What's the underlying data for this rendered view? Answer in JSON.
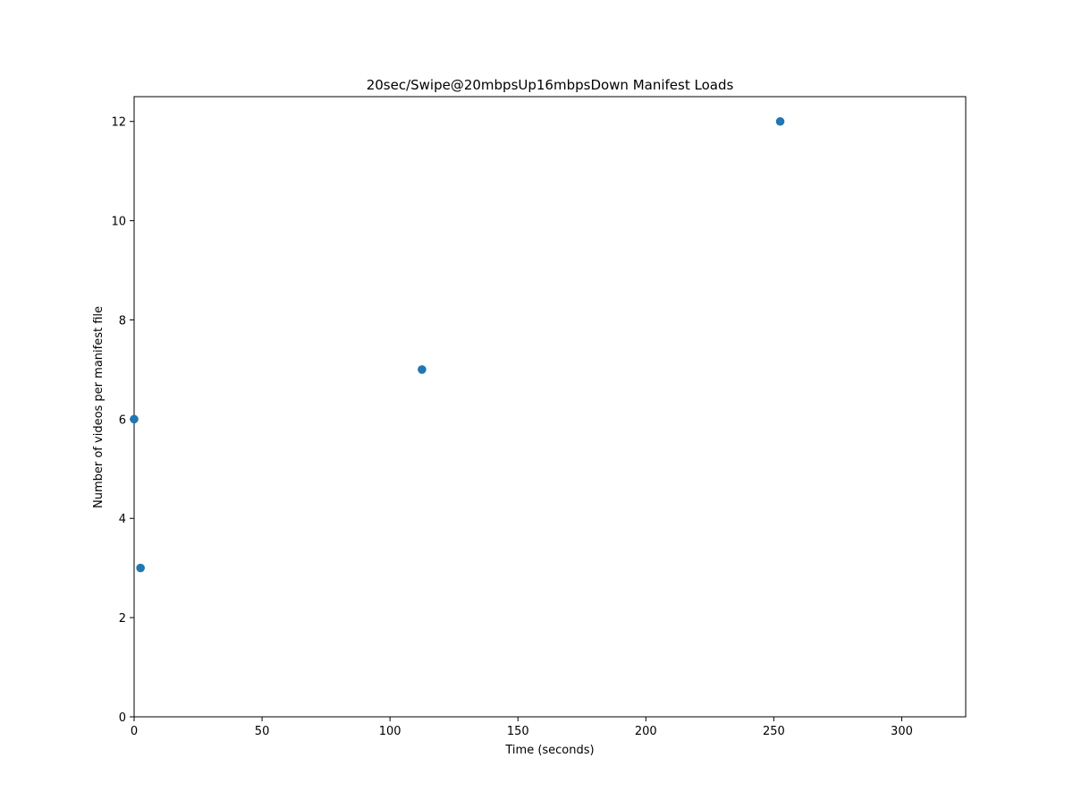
{
  "chart_data": {
    "type": "scatter",
    "title": "20sec/Swipe@20mbpsUp16mbpsDown Manifest Loads",
    "xlabel": "Time (seconds)",
    "ylabel": "Number of videos per manifest file",
    "xlim": [
      0,
      325
    ],
    "ylim": [
      0,
      12.5
    ],
    "xticks": [
      0,
      50,
      100,
      150,
      200,
      250,
      300
    ],
    "yticks": [
      0,
      2,
      4,
      6,
      8,
      10,
      12
    ],
    "grid": false,
    "legend": "none",
    "marker_color": "#1f77b4",
    "series": [
      {
        "points": [
          {
            "x": 0,
            "y": 6
          },
          {
            "x": 2.5,
            "y": 3
          },
          {
            "x": 112.5,
            "y": 7
          },
          {
            "x": 252.5,
            "y": 12
          }
        ]
      }
    ]
  }
}
